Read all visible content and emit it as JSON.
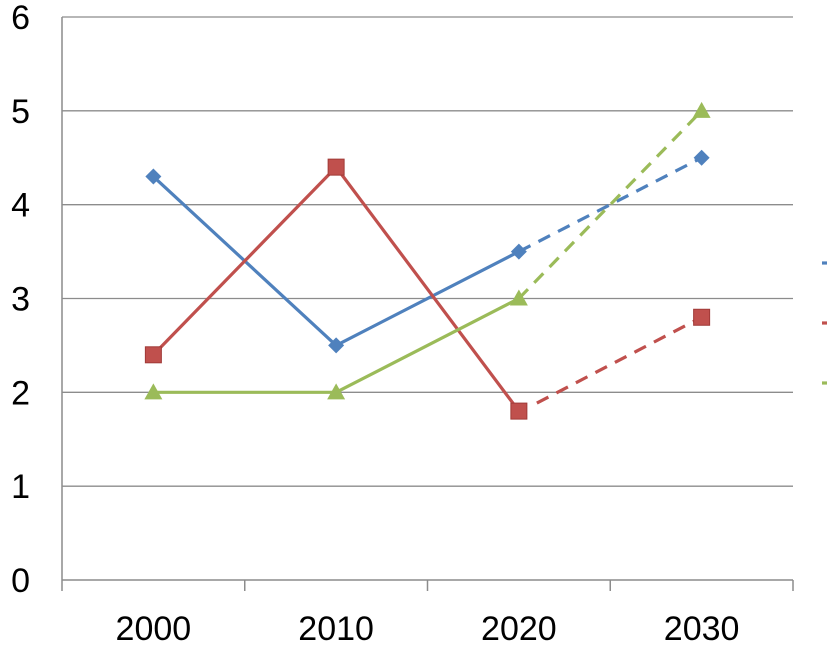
{
  "chart_data": {
    "type": "line",
    "categories": [
      "2000",
      "2010",
      "2020",
      "2030"
    ],
    "ylim": [
      0,
      6
    ],
    "y_ticks": [
      "0",
      "1",
      "2",
      "3",
      "4",
      "5",
      "6"
    ],
    "grid": true,
    "legend": "right (cropped)",
    "series": [
      {
        "color": "#4F81BD",
        "marker": "diamond",
        "values": [
          4.3,
          2.5,
          3.5,
          4.5
        ],
        "dashed_from_index": 2
      },
      {
        "color": "#C0504D",
        "marker": "square",
        "values": [
          2.4,
          4.4,
          1.8,
          2.8
        ],
        "dashed_from_index": 2,
        "projection_gap": true
      },
      {
        "color": "#9BBB59",
        "marker": "triangle",
        "values": [
          2.0,
          2.0,
          3.0,
          5.0
        ],
        "dashed_from_index": 2
      }
    ]
  }
}
